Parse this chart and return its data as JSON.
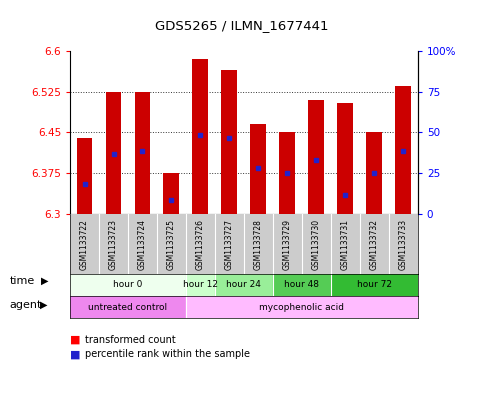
{
  "title": "GDS5265 / ILMN_1677441",
  "samples": [
    "GSM1133722",
    "GSM1133723",
    "GSM1133724",
    "GSM1133725",
    "GSM1133726",
    "GSM1133727",
    "GSM1133728",
    "GSM1133729",
    "GSM1133730",
    "GSM1133731",
    "GSM1133732",
    "GSM1133733"
  ],
  "bar_tops": [
    6.44,
    6.525,
    6.525,
    6.375,
    6.585,
    6.565,
    6.465,
    6.45,
    6.51,
    6.505,
    6.45,
    6.535
  ],
  "bar_bottoms": [
    6.3,
    6.3,
    6.3,
    6.3,
    6.3,
    6.3,
    6.3,
    6.3,
    6.3,
    6.3,
    6.3,
    6.3
  ],
  "blue_y": [
    6.355,
    6.41,
    6.415,
    6.325,
    6.445,
    6.44,
    6.385,
    6.375,
    6.4,
    6.335,
    6.375,
    6.415
  ],
  "ylim": [
    6.3,
    6.6
  ],
  "yticks": [
    6.3,
    6.375,
    6.45,
    6.525,
    6.6
  ],
  "ytick_labels": [
    "6.3",
    "6.375",
    "6.45",
    "6.525",
    "6.6"
  ],
  "y2ticks": [
    0.0,
    0.25,
    0.5,
    0.75,
    1.0
  ],
  "y2tick_labels": [
    "0",
    "25",
    "50",
    "75",
    "100%"
  ],
  "bar_color": "#cc0000",
  "blue_color": "#2222cc",
  "bar_width": 0.55,
  "time_groups": [
    {
      "label": "hour 0",
      "start": 0,
      "end": 4,
      "color": "#eeffee"
    },
    {
      "label": "hour 12",
      "start": 4,
      "end": 5,
      "color": "#ccffcc"
    },
    {
      "label": "hour 24",
      "start": 5,
      "end": 7,
      "color": "#99ee99"
    },
    {
      "label": "hour 48",
      "start": 7,
      "end": 9,
      "color": "#55cc55"
    },
    {
      "label": "hour 72",
      "start": 9,
      "end": 12,
      "color": "#33bb33"
    }
  ],
  "agent_groups": [
    {
      "label": "untreated control",
      "start": 0,
      "end": 4,
      "color": "#ee88ee"
    },
    {
      "label": "mycophenolic acid",
      "start": 4,
      "end": 12,
      "color": "#ffbbff"
    }
  ],
  "sample_bg": "#cccccc",
  "legend_red_label": "transformed count",
  "legend_blue_label": "percentile rank within the sample"
}
